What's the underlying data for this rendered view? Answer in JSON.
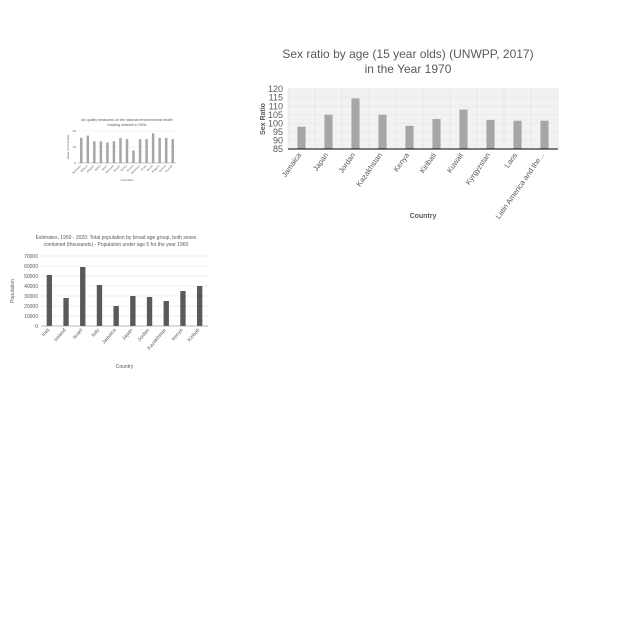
{
  "chart_data": [
    {
      "type": "bar",
      "title": "Air quality measures on the national environmental health tracking network in 2004",
      "title_lines": [
        "Air quality measures on the national environmental health",
        "tracking network in 2004"
      ],
      "xlabel": "Countries",
      "ylabel": "Value of air quality",
      "yticks": [
        "20",
        "10",
        "0"
      ],
      "ylim": [
        0,
        28
      ],
      "categories": [
        "Barbados",
        "Belarus",
        "Belgium",
        "Belize",
        "Benin",
        "Bermuda",
        "Bhutan",
        "Bolivia",
        "Bosnia",
        "Botswana",
        "Brazil",
        "Brunei",
        "Bulgaria",
        "Burkina",
        "Burundi"
      ],
      "values": [
        22,
        24,
        19,
        19,
        18,
        19,
        22,
        21,
        11,
        21,
        21,
        26,
        22,
        22,
        21
      ],
      "bar_color": "#a6a6a6",
      "grid": true
    },
    {
      "type": "bar",
      "title": "Sex ratio by age (15 year olds) (UNWPP, 2017) in the Year 1970",
      "title_lines": [
        "Sex ratio by age (15 year olds) (UNWPP, 2017)",
        "in the Year 1970"
      ],
      "xlabel": "Country",
      "ylabel": "Sex Ratio",
      "ylim": [
        85,
        120
      ],
      "yticks": [
        85,
        90,
        95,
        100,
        105,
        110,
        115,
        120
      ],
      "categories": [
        "Jamaica",
        "Japan",
        "Jordan",
        "Kazakhstan",
        "Kenya",
        "Kiribati",
        "Kuwait",
        "Kyrgyzstan",
        "Laos",
        "Latin America and the..."
      ],
      "values": [
        98,
        105,
        114.5,
        105,
        98.5,
        102.5,
        108,
        102,
        101.5,
        101.5
      ],
      "bar_color": "#a6a6a6",
      "grid": true,
      "legend": "none"
    },
    {
      "type": "bar",
      "title": "Estimates, 1950 - 2020: Total population by broad age group, both sexes combined (thousands) - Population under age 5 for the year 1960",
      "title_lines": [
        "Estimates, 1950 - 2020: Total population by broad age group, both sexes",
        "combined (thousands) - Population under age 5 for the year 1960"
      ],
      "xlabel": "Country",
      "ylabel": "Population",
      "ylim": [
        0,
        70000
      ],
      "yticks": [
        0,
        10000,
        20000,
        30000,
        40000,
        50000,
        60000,
        70000
      ],
      "categories": [
        "Iraq",
        "Ireland",
        "Israel",
        "Italy",
        "Jamaica",
        "Japan",
        "Jordan",
        "Kazakhstan",
        "Kenya",
        "Kiribati"
      ],
      "values": [
        51000,
        28000,
        59000,
        41000,
        20000,
        30000,
        29000,
        25000,
        35000,
        40000
      ],
      "bar_color": "#595959",
      "grid": true,
      "legend": "none"
    }
  ]
}
